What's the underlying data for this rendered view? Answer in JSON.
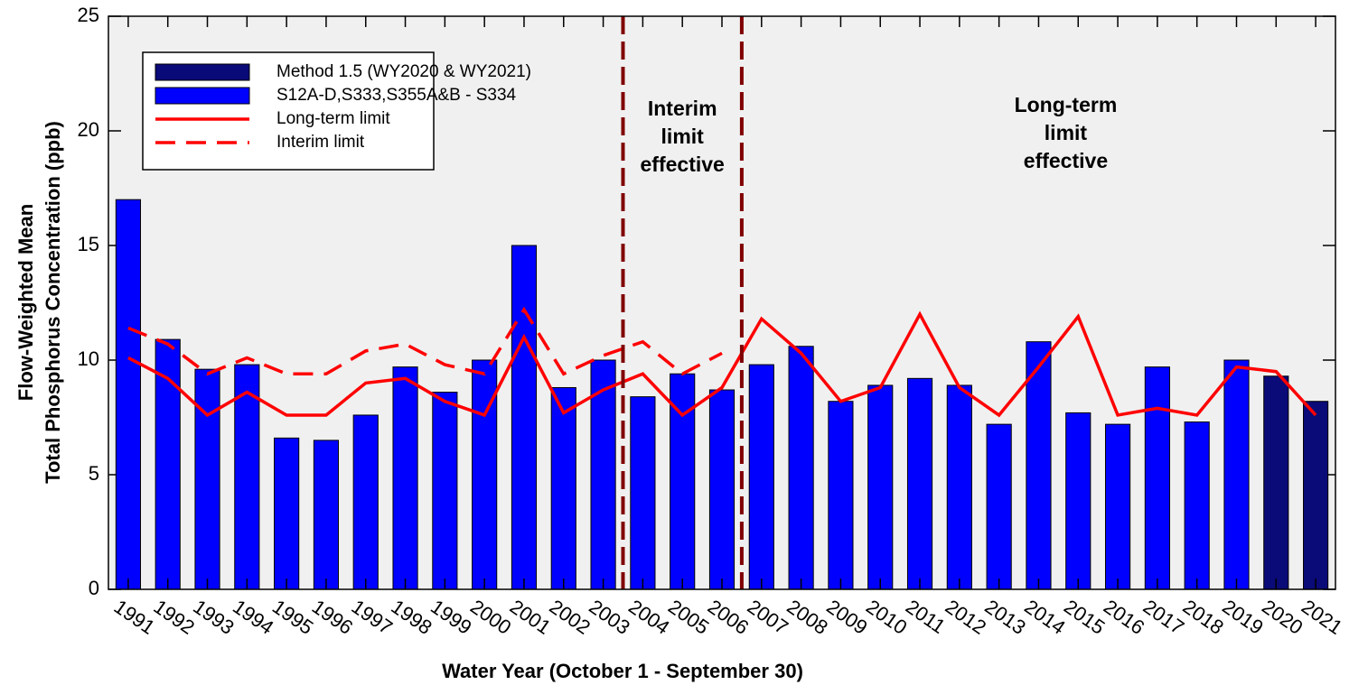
{
  "chart_data": {
    "type": "bar",
    "y_label": [
      "Flow-Weighted Mean",
      "Total Phosphorus Concentration (ppb)"
    ],
    "x_label": "Water Year (October 1 - September 30)",
    "categories": [
      "1991",
      "1992",
      "1993",
      "1994",
      "1995",
      "1996",
      "1997",
      "1998",
      "1999",
      "2000",
      "2001",
      "2002",
      "2003",
      "2004",
      "2005",
      "2006",
      "2007",
      "2008",
      "2009",
      "2010",
      "2011",
      "2012",
      "2013",
      "2014",
      "2015",
      "2016",
      "2017",
      "2018",
      "2019",
      "2020",
      "2021"
    ],
    "series": [
      {
        "name": "Method 1.5 (WY2020 & WY2021)",
        "type": "bar",
        "color": "#0a0a78",
        "values": [
          null,
          null,
          null,
          null,
          null,
          null,
          null,
          null,
          null,
          null,
          null,
          null,
          null,
          null,
          null,
          null,
          null,
          null,
          null,
          null,
          null,
          null,
          null,
          null,
          null,
          null,
          null,
          null,
          null,
          9.3,
          8.2
        ]
      },
      {
        "name": "S12A-D,S333,S355A&B - S334",
        "type": "bar",
        "color": "#0000ff",
        "values": [
          17.0,
          10.9,
          9.6,
          9.8,
          6.6,
          6.5,
          7.6,
          9.7,
          8.6,
          10.0,
          15.0,
          8.8,
          10.0,
          8.4,
          9.4,
          8.7,
          9.8,
          10.6,
          8.2,
          8.9,
          9.2,
          8.9,
          7.2,
          10.8,
          7.7,
          7.2,
          9.7,
          7.3,
          10.0,
          null,
          null
        ]
      },
      {
        "name": "Long-term limit",
        "type": "line",
        "dash": false,
        "color": "#ff0000",
        "values": [
          10.1,
          9.2,
          7.6,
          8.6,
          7.6,
          7.6,
          9.0,
          9.2,
          8.2,
          7.6,
          11.0,
          7.7,
          8.7,
          9.4,
          7.6,
          8.8,
          11.8,
          10.3,
          8.2,
          8.8,
          12.0,
          8.8,
          7.6,
          9.7,
          11.9,
          7.6,
          7.9,
          7.6,
          9.7,
          9.5,
          7.6
        ]
      },
      {
        "name": "Interim limit",
        "type": "line",
        "dash": true,
        "color": "#ff0000",
        "values": [
          11.4,
          10.7,
          9.4,
          10.1,
          9.4,
          9.4,
          10.4,
          10.7,
          9.8,
          9.4,
          12.2,
          9.4,
          10.2,
          10.8,
          9.4,
          10.3,
          null,
          null,
          null,
          null,
          null,
          null,
          null,
          null,
          null,
          null,
          null,
          null,
          null,
          null,
          null
        ]
      }
    ],
    "period_breaks": [
      "2003",
      "2006"
    ],
    "annotations": [
      [
        "Interim",
        "limit",
        "effective"
      ],
      [
        "Long-term",
        "limit",
        "effective"
      ]
    ],
    "ylim": [
      0,
      25
    ],
    "yticks": [
      0,
      5,
      10,
      15,
      20,
      25
    ],
    "legend": "upper left"
  }
}
